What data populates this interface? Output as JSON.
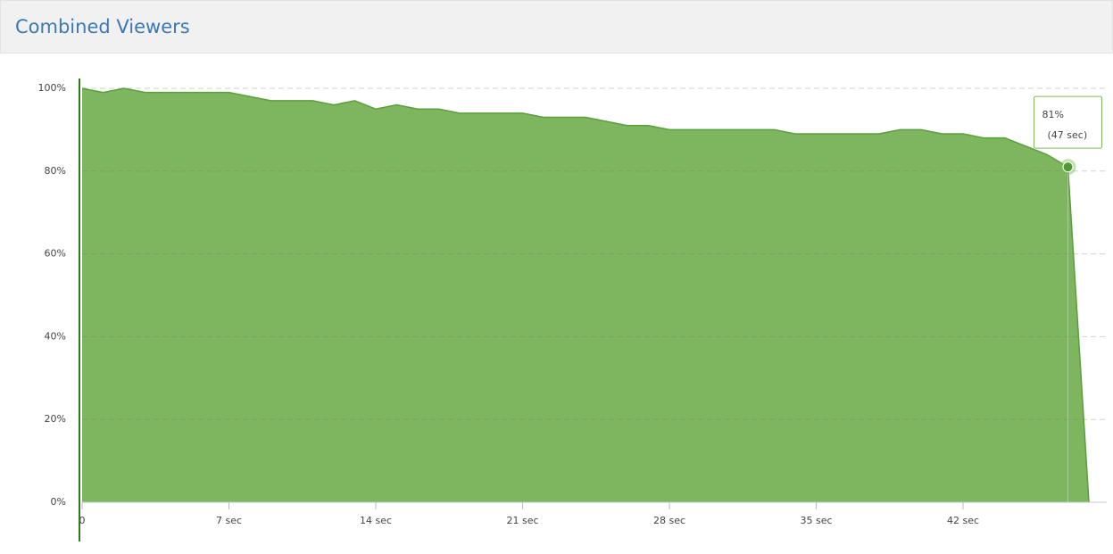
{
  "header": {
    "title": "Combined Viewers"
  },
  "chart_data": {
    "type": "area",
    "x": [
      0,
      1,
      2,
      3,
      4,
      5,
      6,
      7,
      8,
      9,
      10,
      11,
      12,
      13,
      14,
      15,
      16,
      17,
      18,
      19,
      20,
      21,
      22,
      23,
      24,
      25,
      26,
      27,
      28,
      29,
      30,
      31,
      32,
      33,
      34,
      35,
      36,
      37,
      38,
      39,
      40,
      41,
      42,
      43,
      44,
      45,
      46,
      47,
      48
    ],
    "values": [
      100,
      99,
      100,
      99,
      99,
      99,
      99,
      99,
      98,
      97,
      97,
      97,
      96,
      97,
      95,
      96,
      95,
      95,
      94,
      94,
      94,
      94,
      93,
      93,
      93,
      92,
      91,
      91,
      90,
      90,
      90,
      90,
      90,
      90,
      89,
      89,
      89,
      89,
      89,
      90,
      90,
      89,
      89,
      88,
      88,
      86,
      84,
      81,
      0
    ],
    "color": "#7db65e",
    "line_color": "#5c9e3e",
    "xlim": [
      0,
      48
    ],
    "xticks": [
      0,
      {
        "value": 7,
        "label": "7 sec"
      },
      {
        "value": 14,
        "label": "14 sec"
      },
      {
        "value": 21,
        "label": "21 sec"
      },
      {
        "value": 28,
        "label": "28 sec"
      },
      {
        "value": 35,
        "label": "35 sec"
      },
      {
        "value": 42,
        "label": "42 sec"
      }
    ],
    "ylim": [
      0,
      100
    ],
    "yticks": [
      {
        "value": 0,
        "label": "0%"
      },
      {
        "value": 20,
        "label": "20%"
      },
      {
        "value": 40,
        "label": "40%"
      },
      {
        "value": 60,
        "label": "60%"
      },
      {
        "value": 80,
        "label": "80%"
      },
      {
        "value": 100,
        "label": "100%"
      }
    ],
    "grid": true,
    "tooltip": {
      "index": 47,
      "lines": [
        "81%",
        "(47 sec)"
      ]
    }
  }
}
